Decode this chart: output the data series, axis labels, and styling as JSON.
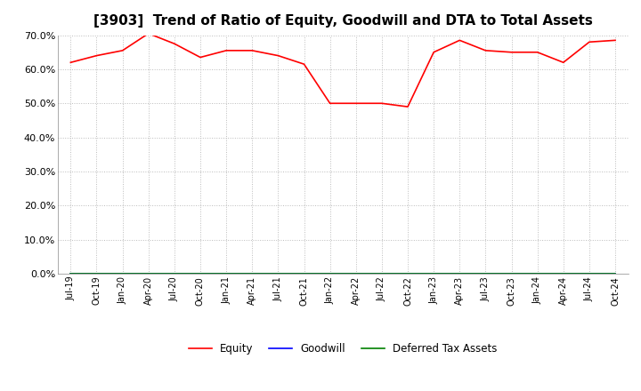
{
  "title": "[3903]  Trend of Ratio of Equity, Goodwill and DTA to Total Assets",
  "x_labels": [
    "Jul-19",
    "Oct-19",
    "Jan-20",
    "Apr-20",
    "Jul-20",
    "Oct-20",
    "Jan-21",
    "Apr-21",
    "Jul-21",
    "Oct-21",
    "Jan-22",
    "Apr-22",
    "Jul-22",
    "Oct-22",
    "Jan-23",
    "Apr-23",
    "Jul-23",
    "Oct-23",
    "Jan-24",
    "Apr-24",
    "Jul-24",
    "Oct-24"
  ],
  "equity": [
    0.62,
    0.64,
    0.655,
    0.705,
    0.675,
    0.635,
    0.655,
    0.655,
    0.64,
    0.615,
    0.5,
    0.5,
    0.5,
    0.49,
    0.65,
    0.685,
    0.655,
    0.65,
    0.65,
    0.62,
    0.68,
    0.685
  ],
  "goodwill": [
    0.0,
    0.0,
    0.0,
    0.0,
    0.0,
    0.0,
    0.0,
    0.0,
    0.0,
    0.0,
    0.0,
    0.0,
    0.0,
    0.0,
    0.0,
    0.0,
    0.0,
    0.0,
    0.0,
    0.0,
    0.0,
    0.0
  ],
  "dta": [
    0.0,
    0.0,
    0.0,
    0.0,
    0.0,
    0.0,
    0.0,
    0.0,
    0.0,
    0.0,
    0.0,
    0.0,
    0.0,
    0.0,
    0.0,
    0.0,
    0.0,
    0.0,
    0.0,
    0.0,
    0.0,
    0.0
  ],
  "equity_color": "#FF0000",
  "goodwill_color": "#0000FF",
  "dta_color": "#008000",
  "ylim": [
    0.0,
    0.7
  ],
  "yticks": [
    0.0,
    0.1,
    0.2,
    0.3,
    0.4,
    0.5,
    0.6,
    0.7
  ],
  "background_color": "#FFFFFF",
  "plot_bg_color": "#FFFFFF",
  "grid_color": "#BBBBBB",
  "title_fontsize": 11,
  "legend_labels": [
    "Equity",
    "Goodwill",
    "Deferred Tax Assets"
  ]
}
